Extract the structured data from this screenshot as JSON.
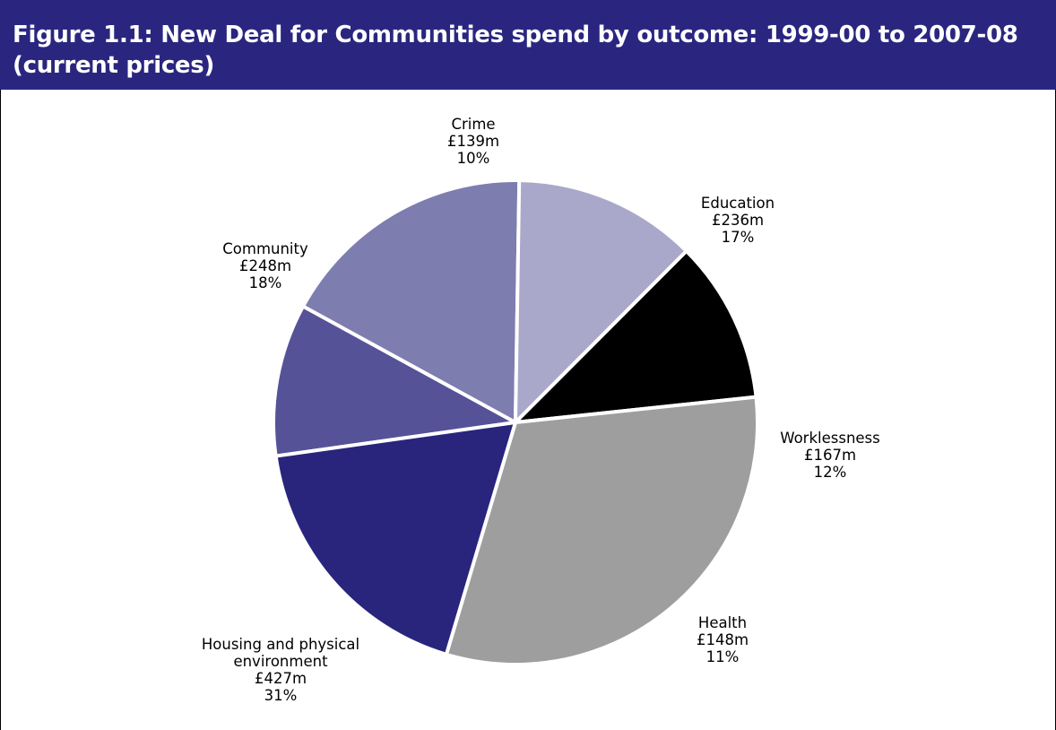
{
  "figure": {
    "title_line1": "Figure 1.1: New Deal for Communities spend by outcome: 1999-00 to 2007-08",
    "title_line2": "(current prices)"
  },
  "colors": {
    "title_bar": "#2a2680",
    "slice_separator": "#ffffff"
  },
  "chart_data": {
    "type": "pie",
    "title": "Figure 1.1: New Deal for Communities spend by outcome: 1999-00 to 2007-08 (current prices)",
    "slices": [
      {
        "name": "Crime",
        "value": 139,
        "value_label": "£139m",
        "percent_label": "10%",
        "color": "#565298"
      },
      {
        "name": "Education",
        "value": 236,
        "value_label": "£236m",
        "percent_label": "17%",
        "color": "#7e7db0"
      },
      {
        "name": "Worklessness",
        "value": 167,
        "value_label": "£167m",
        "percent_label": "12%",
        "color": "#a9a8cb"
      },
      {
        "name": "Health",
        "value": 148,
        "value_label": "£148m",
        "percent_label": "11%",
        "color": "#000000"
      },
      {
        "name": "Housing and physical environment",
        "value": 427,
        "value_label": "£427m",
        "percent_label": "31%",
        "color": "#9e9e9e",
        "name_lines": [
          "Housing and physical",
          "environment"
        ]
      },
      {
        "name": "Community",
        "value": 248,
        "value_label": "£248m",
        "percent_label": "18%",
        "color": "#29257d"
      }
    ]
  }
}
